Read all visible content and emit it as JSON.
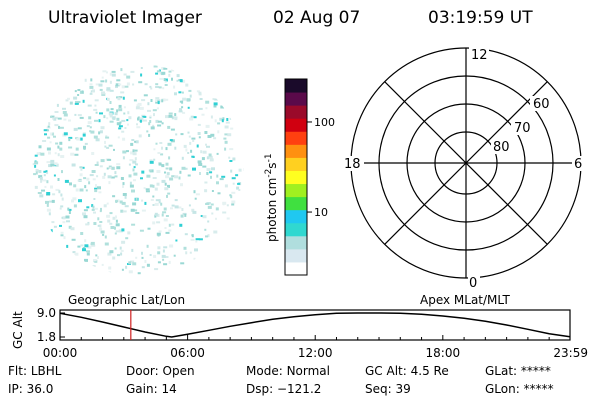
{
  "header": {
    "instrument": "Ultraviolet Imager",
    "date": "02 Aug 07",
    "time": "03:19:59 UT"
  },
  "colorbar": {
    "unit_label": "photon cm",
    "unit_exp1": "-2",
    "unit_mid": "s",
    "unit_exp2": "-1",
    "ticks": [
      {
        "value": 10,
        "label": "10"
      },
      {
        "value": 100,
        "label": "100"
      }
    ],
    "colors": [
      "#ffffff",
      "#d9e8f0",
      "#b0dede",
      "#30d8d0",
      "#20c8f0",
      "#40e040",
      "#a0f020",
      "#ffff20",
      "#ffd020",
      "#ff9010",
      "#ff4010",
      "#d00010",
      "#9a0a2a",
      "#5a0a4a",
      "#1a0a2a"
    ]
  },
  "polar_plot": {
    "latitude_labels": [
      "60",
      "70",
      "80"
    ],
    "mlt_labels": {
      "top": "12",
      "left": "18",
      "right": "6",
      "bottom": "0"
    }
  },
  "timeline": {
    "ylabel": "GC Alt",
    "left_title": "Geographic Lat/Lon",
    "right_title": "Apex MLat/MLT"
  },
  "chart_data": {
    "type": "line",
    "ylabel": "GC Alt",
    "xlabel": "",
    "x_ticks": [
      "00:00",
      "06:00",
      "12:00",
      "18:00",
      "23:59"
    ],
    "y_ticks": [
      "1.8",
      "9.0"
    ],
    "ylim": [
      1.8,
      9.0
    ],
    "xlim_hours": [
      0,
      23.98
    ],
    "current_time_hours": 3.33,
    "series": [
      {
        "x_hours": [
          0,
          1,
          2,
          3,
          4,
          5,
          5.25,
          6,
          7,
          8,
          9,
          10,
          11,
          12,
          13,
          14,
          14.5,
          15,
          16,
          17,
          18,
          19,
          20,
          21,
          22,
          23,
          23.98
        ],
        "values": [
          8.9,
          7.7,
          6.3,
          4.8,
          3.3,
          2.0,
          1.8,
          2.6,
          3.8,
          5.0,
          6.1,
          7.1,
          7.9,
          8.5,
          8.9,
          9.0,
          9.0,
          9.0,
          8.9,
          8.6,
          8.1,
          7.4,
          6.5,
          5.4,
          4.1,
          2.8,
          1.9
        ]
      }
    ]
  },
  "footer": {
    "row1": [
      {
        "label": "Flt:",
        "value": "LBHL"
      },
      {
        "label": "Door:",
        "value": "Open"
      },
      {
        "label": "Mode:",
        "value": "Normal"
      },
      {
        "label": "GC Alt:",
        "value": "4.5 Re"
      },
      {
        "label": "GLat:",
        "value": "*****"
      }
    ],
    "row2": [
      {
        "label": "IP:",
        "value": "36.0"
      },
      {
        "label": "Gain:",
        "value": "14"
      },
      {
        "label": "Dsp:",
        "value": "−121.2"
      },
      {
        "label": "Seq:",
        "value": "39"
      },
      {
        "label": "GLon:",
        "value": "*****"
      }
    ]
  }
}
